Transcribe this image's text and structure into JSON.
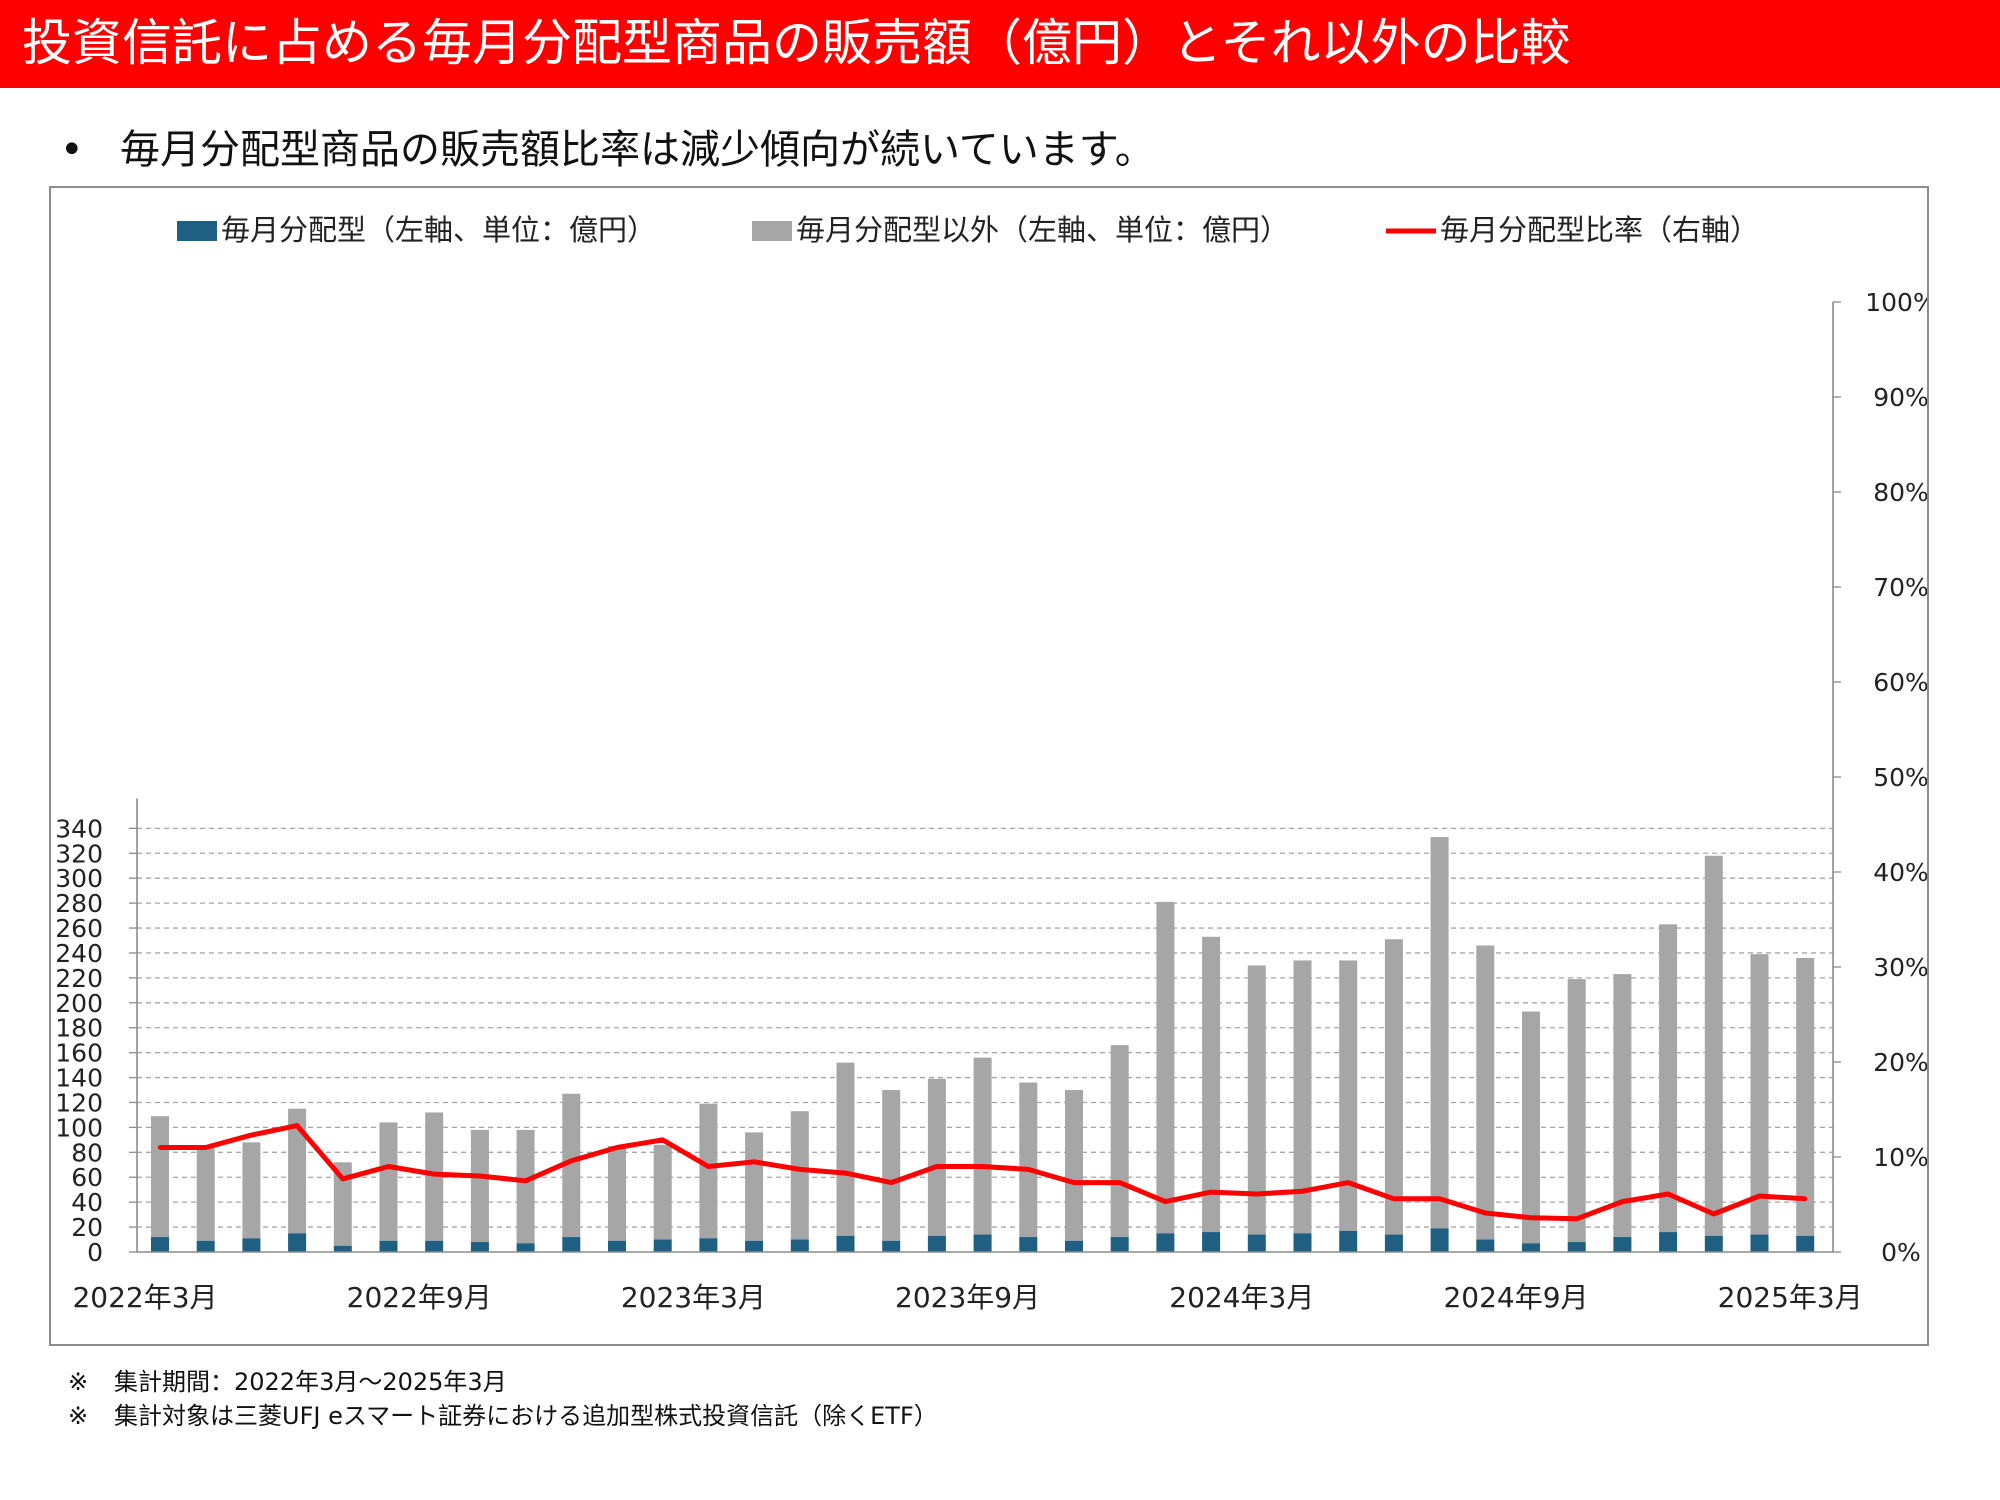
{
  "header": {
    "title": "投資信託に占める毎月分配型商品の販売額（億円）とそれ以外の比較",
    "bullet_symbol": "•",
    "bullet": "毎月分配型商品の販売額比率は減少傾向が続いています。"
  },
  "colors": {
    "title_bar": "#ff0000",
    "monthly": "#1f5f82",
    "other": "#a6a6a6",
    "ratio_line": "#ff0000"
  },
  "chart_data": {
    "type": "bar",
    "stacked": true,
    "legend_position": "top",
    "grid": true,
    "legend": {
      "monthly": "毎月分配型（左軸、単位：億円）",
      "other": "毎月分配型以外（左軸、単位：億円）",
      "ratio": "毎月分配型比率（右軸）"
    },
    "categories": [
      "2022年3月",
      "2022年4月",
      "2022年5月",
      "2022年6月",
      "2022年7月",
      "2022年8月",
      "2022年9月",
      "2022年10月",
      "2022年11月",
      "2022年12月",
      "2023年1月",
      "2023年2月",
      "2023年3月",
      "2023年4月",
      "2023年5月",
      "2023年6月",
      "2023年7月",
      "2023年8月",
      "2023年9月",
      "2023年10月",
      "2023年11月",
      "2023年12月",
      "2024年1月",
      "2024年2月",
      "2024年3月",
      "2024年4月",
      "2024年5月",
      "2024年6月",
      "2024年7月",
      "2024年8月",
      "2024年9月",
      "2024年10月",
      "2024年11月",
      "2024年12月",
      "2025年1月",
      "2025年2月",
      "2025年3月"
    ],
    "x_tick_labels": [
      "2022年3月",
      "2022年9月",
      "2023年3月",
      "2023年9月",
      "2024年3月",
      "2024年9月",
      "2025年3月"
    ],
    "x_tick_indices": [
      0,
      6,
      12,
      18,
      24,
      30,
      36
    ],
    "series": [
      {
        "name": "毎月分配型（左軸、単位：億円）",
        "axis": "left",
        "type": "bar",
        "values": [
          12,
          9,
          11,
          15,
          5,
          9,
          9,
          8,
          7,
          12,
          9,
          10,
          11,
          9,
          10,
          13,
          9,
          13,
          14,
          12,
          9,
          12,
          15,
          16,
          14,
          15,
          17,
          14,
          19,
          10,
          7,
          8,
          12,
          16,
          13,
          14,
          13
        ]
      },
      {
        "name": "毎月分配型以外（左軸、単位：億円）",
        "axis": "left",
        "type": "bar",
        "values": [
          97,
          76,
          77,
          100,
          67,
          95,
          103,
          90,
          91,
          115,
          76,
          76,
          108,
          87,
          103,
          139,
          121,
          126,
          142,
          124,
          121,
          154,
          266,
          237,
          216,
          219,
          217,
          237,
          314,
          236,
          186,
          211,
          211,
          247,
          305,
          225,
          223
        ]
      },
      {
        "name": "毎月分配型比率（右軸）",
        "axis": "right",
        "type": "line",
        "values": [
          11.0,
          11.0,
          12.3,
          13.3,
          7.7,
          9.0,
          8.2,
          8.0,
          7.5,
          9.6,
          11.0,
          11.8,
          9.0,
          9.5,
          8.7,
          8.3,
          7.3,
          9.0,
          9.0,
          8.7,
          7.3,
          7.3,
          5.3,
          6.3,
          6.1,
          6.4,
          7.3,
          5.6,
          5.6,
          4.1,
          3.6,
          3.5,
          5.3,
          6.1,
          4.0,
          5.9,
          5.6
        ]
      }
    ],
    "y_left": {
      "ylim": [
        0,
        340
      ],
      "ticks": [
        0,
        20,
        40,
        60,
        80,
        100,
        120,
        140,
        160,
        180,
        200,
        220,
        240,
        260,
        280,
        300,
        320,
        340
      ]
    },
    "y_right": {
      "ylim": [
        0,
        100
      ],
      "ticks": [
        "0%",
        "10%",
        "20%",
        "30%",
        "40%",
        "50%",
        "60%",
        "70%",
        "80%",
        "90%",
        "100%"
      ]
    }
  },
  "notes": [
    {
      "mark": "※",
      "text": "集計期間：2022年3月～2025年3月"
    },
    {
      "mark": "※",
      "text": "集計対象は三菱UFJ eスマート証券における追加型株式投資信託（除くETF）"
    }
  ]
}
